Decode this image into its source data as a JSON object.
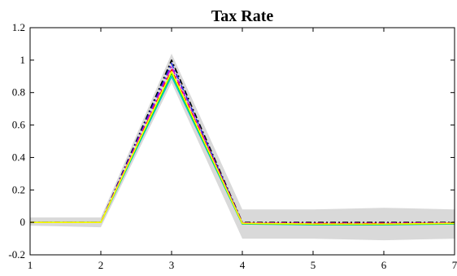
{
  "chart_data": {
    "type": "line",
    "title": "Tax Rate",
    "xlabel": "",
    "ylabel": "",
    "xlim": [
      1,
      7
    ],
    "ylim": [
      -0.2,
      1.2
    ],
    "xticks": [
      1,
      2,
      3,
      4,
      5,
      6,
      7
    ],
    "yticks": [
      -0.2,
      0,
      0.2,
      0.4,
      0.6,
      0.8,
      1,
      1.2
    ],
    "grid": false,
    "legend": "none",
    "x": [
      1,
      2,
      3,
      4,
      5,
      6,
      7
    ],
    "band": {
      "color": "#d9d9d9",
      "upper": [
        0.03,
        0.03,
        1.04,
        0.08,
        0.08,
        0.09,
        0.08
      ],
      "lower": [
        -0.02,
        -0.03,
        0.86,
        -0.1,
        -0.1,
        -0.11,
        -0.1
      ]
    },
    "series": [
      {
        "color": "#000000",
        "dash": "dashdot",
        "values": [
          0.0,
          0.0,
          1.0,
          0.0,
          0.0,
          0.0,
          0.0
        ]
      },
      {
        "color": "#1f2bd6",
        "dash": "dashdot",
        "values": [
          0.0,
          0.0,
          0.98,
          -0.005,
          -0.01,
          -0.01,
          -0.005
        ]
      },
      {
        "color": "#d400d4",
        "dash": "dashdot",
        "values": [
          0.0,
          0.0,
          0.96,
          -0.003,
          -0.005,
          -0.005,
          -0.003
        ]
      },
      {
        "color": "#00c8c8",
        "dash": "solid",
        "values": [
          0.0,
          0.0,
          0.9,
          -0.01,
          -0.015,
          -0.015,
          -0.01
        ]
      },
      {
        "color": "#00dd00",
        "dash": "solid",
        "values": [
          0.0,
          0.0,
          0.92,
          -0.008,
          -0.012,
          -0.012,
          -0.008
        ]
      },
      {
        "color": "#ff0000",
        "dash": "dashed",
        "values": [
          0.0,
          0.0,
          0.94,
          -0.005,
          -0.008,
          -0.008,
          -0.005
        ]
      },
      {
        "color": "#ffff00",
        "dash": "solid",
        "values": [
          0.0,
          0.0,
          0.93,
          -0.006,
          -0.01,
          -0.01,
          -0.006
        ]
      }
    ]
  }
}
